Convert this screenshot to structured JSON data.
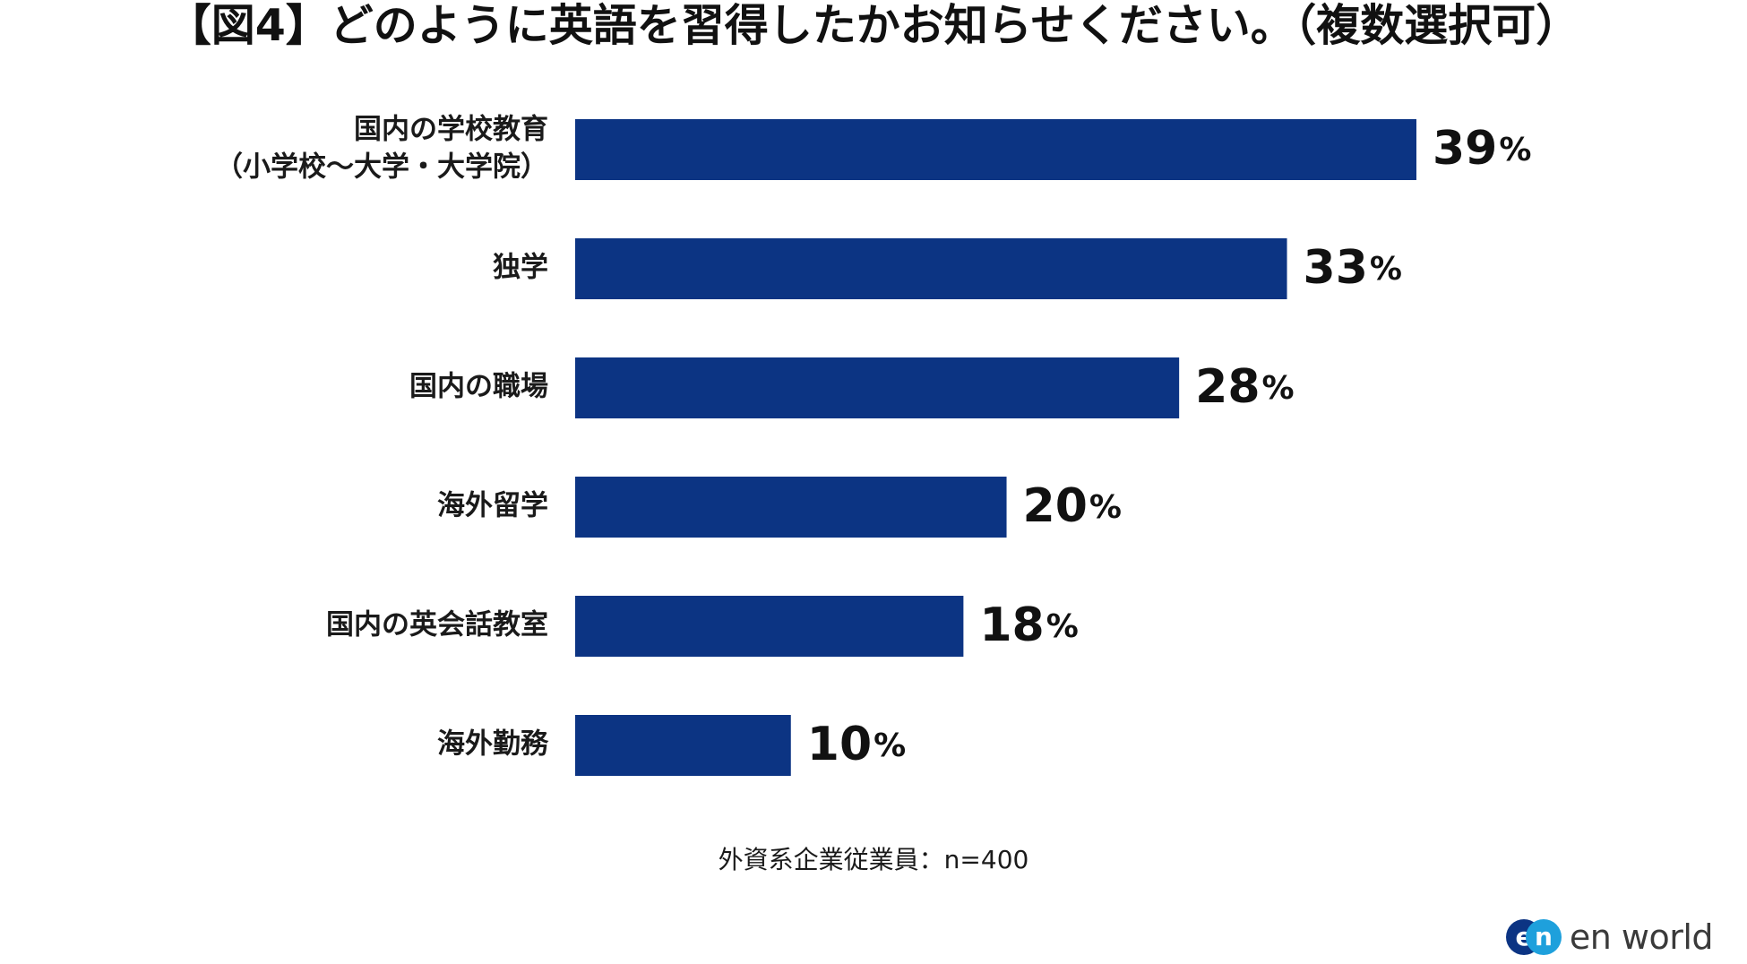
{
  "chart_data": {
    "type": "bar",
    "orientation": "horizontal",
    "title": "【図4】どのように英語を習得したかお知らせください。（複数選択可）",
    "categories": [
      [
        "国内の学校教育",
        "（小学校〜大学・大学院）"
      ],
      [
        "独学"
      ],
      [
        "国内の職場"
      ],
      [
        "海外留学"
      ],
      [
        "国内の英会話教室"
      ],
      [
        "海外勤務"
      ]
    ],
    "values": [
      39,
      33,
      28,
      20,
      18,
      10
    ],
    "unit": "%",
    "bar_color": "#0c3483",
    "xlim": [
      0,
      39
    ],
    "grid": false,
    "legend": "none"
  },
  "footnote": "外資系企業従業員：n=400",
  "brand": {
    "logo_icon": "en-logo-icon",
    "logo_letters": [
      "e",
      "n"
    ],
    "logo_colors": [
      "#0c3483",
      "#1ea0dc"
    ],
    "wordmark": "en world"
  }
}
